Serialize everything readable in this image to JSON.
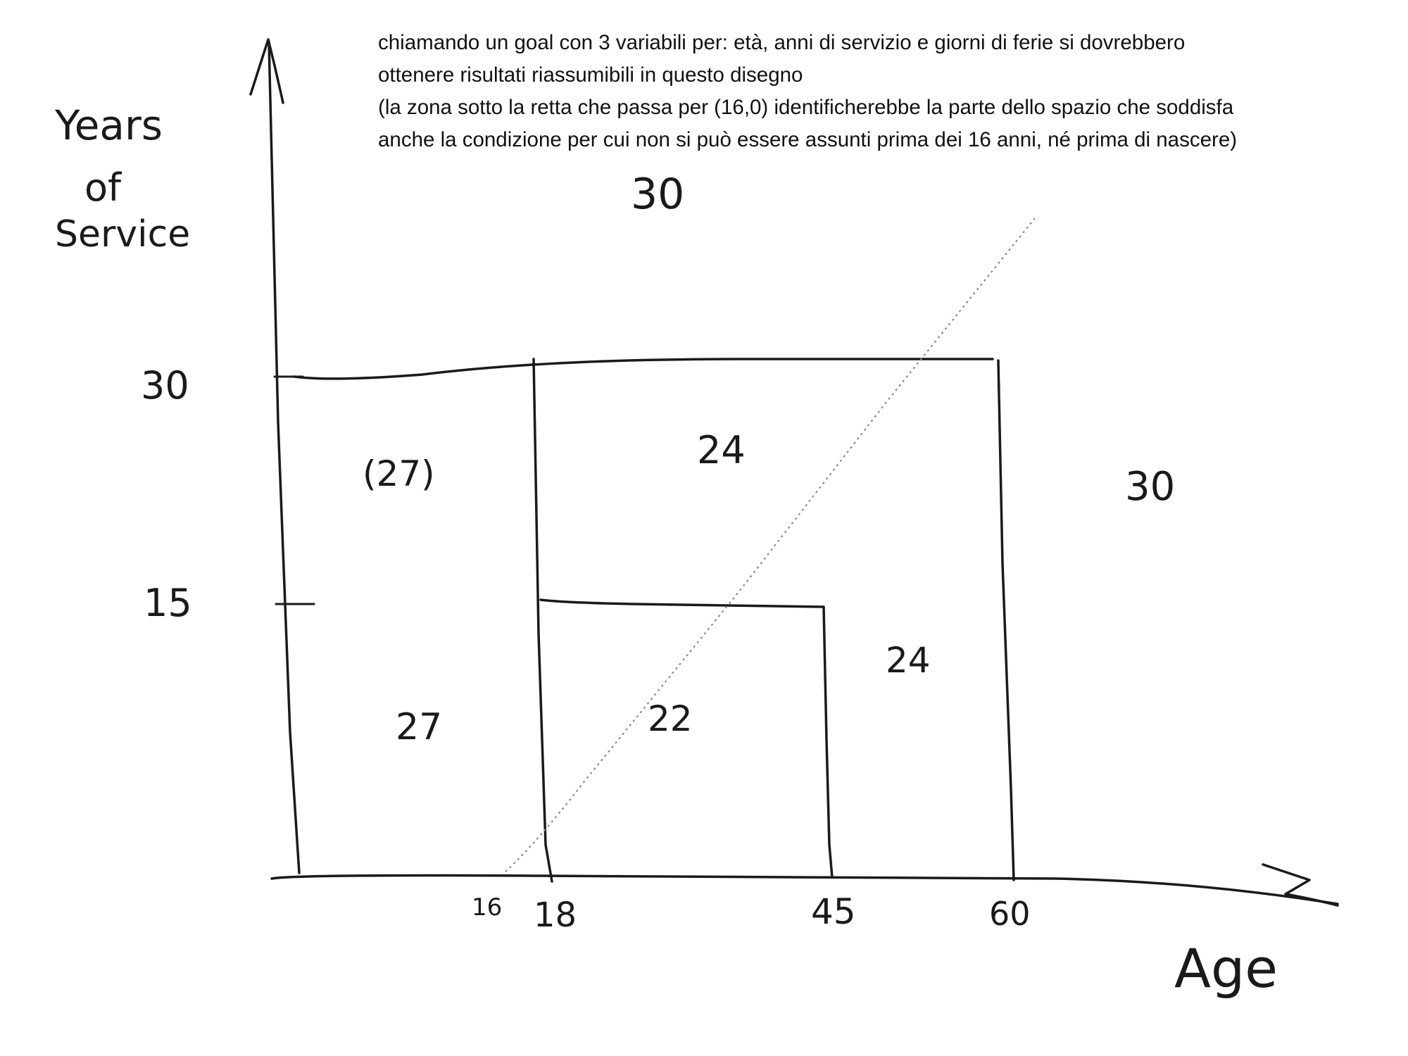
{
  "description_text": {
    "line1": "chiamando un goal con 3 variabili per: età, anni di servizio e giorni di ferie si dovrebbero",
    "line2": "ottenere risultati riassumibili in questo disegno",
    "line3": "(la zona sotto la retta che passa per (16,0) identificherebbe la parte dello spazio che soddisfa",
    "line4": "anche la condizione per cui non si può essere assunti prima dei 16 anni, né prima di nascere)"
  },
  "axes": {
    "y_label_line1": "Years",
    "y_label_line2": "of",
    "y_label_line3": "Service",
    "x_label": "Age",
    "y_ticks": [
      "30",
      "15"
    ],
    "x_ticks": [
      "16",
      "18",
      "45",
      "60"
    ]
  },
  "regions": {
    "above_30": "30",
    "left_upper": "(27)",
    "left_lower": "27",
    "middle_upper": "24",
    "middle_lower": "22",
    "right_inner": "24",
    "over_60": "30"
  },
  "colors": {
    "ink": "#1a1a1a",
    "guide": "#8a8a8a"
  }
}
